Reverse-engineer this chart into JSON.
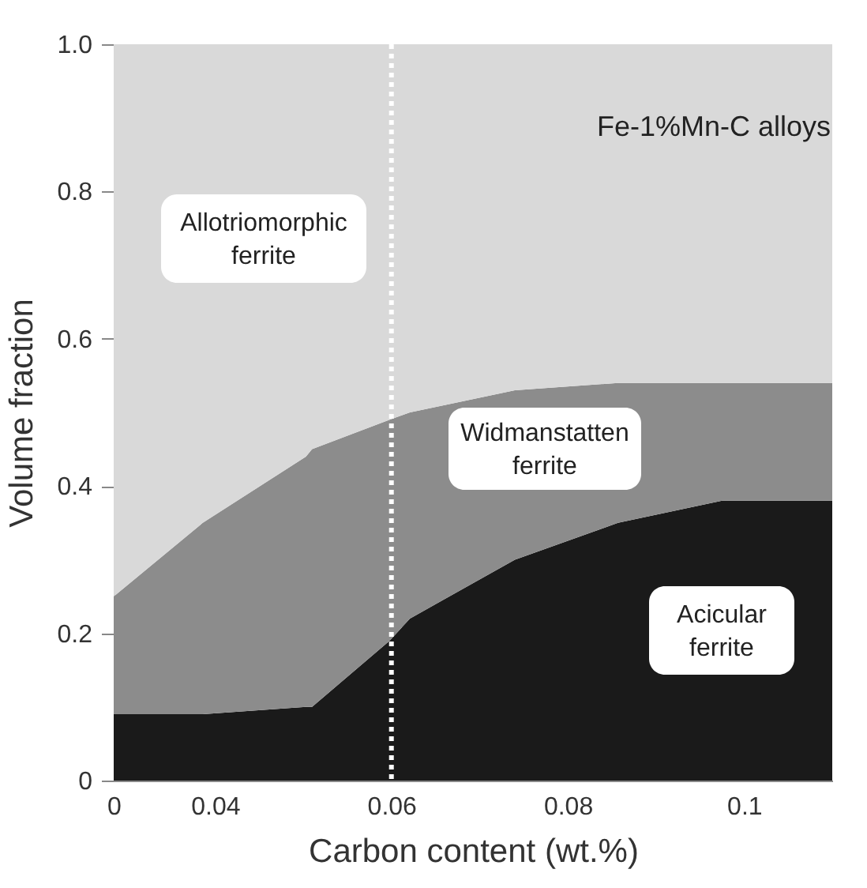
{
  "chart_data": {
    "type": "area",
    "xlabel": "Carbon content (wt.%)",
    "ylabel": "Volume fraction",
    "xlim": [
      0.0285,
      0.11
    ],
    "xticks": [
      {
        "value": 0.0285,
        "label": "0"
      },
      0.04,
      0.06,
      0.08,
      0.1
    ],
    "ylim": [
      0,
      1
    ],
    "yticks": [
      0,
      0.2,
      0.4,
      0.6,
      0.8,
      {
        "value": 1,
        "label": "1.0"
      }
    ],
    "stacked": true,
    "x": [
      0.0285,
      0.0386,
      0.0503,
      0.051,
      0.0598,
      0.0621,
      0.074,
      0.0857,
      0.0975,
      0.11
    ],
    "series": [
      {
        "name": "Acicular ferrite",
        "color": "#1a1a1a",
        "values": [
          0.09,
          0.09,
          0.1,
          0.1,
          0.19,
          0.22,
          0.3,
          0.35,
          0.38,
          0.38
        ]
      },
      {
        "name": "Widmanstatten ferrite",
        "color": "#8c8c8c",
        "values": [
          0.16,
          0.26,
          0.34,
          0.35,
          0.3,
          0.28,
          0.23,
          0.19,
          0.16,
          0.16
        ]
      },
      {
        "name": "Allotriomorphic ferrite",
        "color": "#d9d9d9",
        "values": [
          0.75,
          0.65,
          0.56,
          0.55,
          0.51,
          0.5,
          0.47,
          0.46,
          0.46,
          0.46
        ]
      }
    ],
    "ref_lines": [
      {
        "axis": "x",
        "value": 0.06,
        "label": null,
        "color": "#ffffff",
        "line_style": "dotted"
      }
    ],
    "annotations": [
      "Fe-1%Mn-C alloys"
    ],
    "legend": false,
    "grid": false
  }
}
